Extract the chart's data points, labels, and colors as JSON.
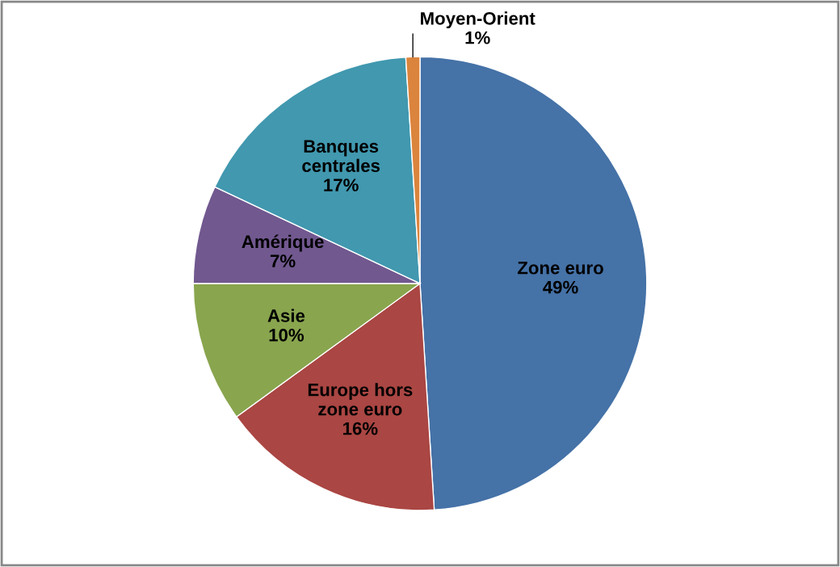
{
  "chart_data": {
    "type": "pie",
    "categories": [
      "Zone euro",
      "Europe hors zone euro",
      "Asie",
      "Amérique",
      "Banques centrales",
      "Moyen-Orient"
    ],
    "values": [
      49,
      16,
      10,
      7,
      17,
      1
    ],
    "value_labels": [
      "49%",
      "16%",
      "10%",
      "7%",
      "17%",
      "1%"
    ],
    "colors": [
      "#4572a7",
      "#aa4643",
      "#89a54e",
      "#71588f",
      "#4198af",
      "#db843d"
    ],
    "legend": false
  }
}
